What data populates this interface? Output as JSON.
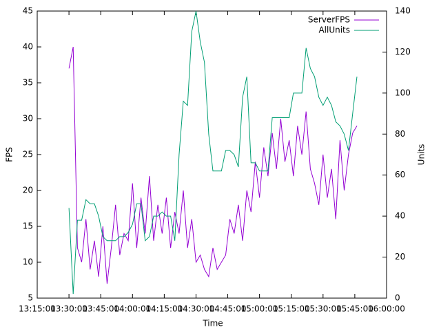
{
  "chart_data": {
    "type": "line",
    "xlabel": "Time",
    "ylabel": "FPS",
    "y2label": "Units",
    "xlim": [
      "13:15:00",
      "16:00:00"
    ],
    "xticks": [
      "13:15:00",
      "13:30:00",
      "13:45:00",
      "14:00:00",
      "14:15:00",
      "14:30:00",
      "14:45:00",
      "15:00:00",
      "15:15:00",
      "15:30:00",
      "15:45:00",
      "16:00:00"
    ],
    "ylim": [
      5,
      45
    ],
    "yticks": [
      5,
      10,
      15,
      20,
      25,
      30,
      35,
      40,
      45
    ],
    "y2lim": [
      0,
      140
    ],
    "y2ticks": [
      0,
      20,
      40,
      60,
      80,
      100,
      120,
      140
    ],
    "legend": "top-right",
    "x": [
      "13:30:00",
      "13:32:00",
      "13:34:00",
      "13:36:00",
      "13:38:00",
      "13:40:00",
      "13:42:00",
      "13:44:00",
      "13:46:00",
      "13:48:00",
      "13:50:00",
      "13:52:00",
      "13:54:00",
      "13:56:00",
      "13:58:00",
      "14:00:00",
      "14:02:00",
      "14:04:00",
      "14:06:00",
      "14:08:00",
      "14:10:00",
      "14:12:00",
      "14:14:00",
      "14:16:00",
      "14:18:00",
      "14:20:00",
      "14:22:00",
      "14:24:00",
      "14:26:00",
      "14:28:00",
      "14:30:00",
      "14:32:00",
      "14:34:00",
      "14:36:00",
      "14:38:00",
      "14:40:00",
      "14:42:00",
      "14:44:00",
      "14:46:00",
      "14:48:00",
      "14:50:00",
      "14:52:00",
      "14:54:00",
      "14:56:00",
      "14:58:00",
      "15:00:00",
      "15:02:00",
      "15:04:00",
      "15:06:00",
      "15:08:00",
      "15:10:00",
      "15:12:00",
      "15:14:00",
      "15:16:00",
      "15:18:00",
      "15:20:00",
      "15:22:00",
      "15:24:00",
      "15:26:00",
      "15:28:00",
      "15:30:00",
      "15:32:00",
      "15:34:00",
      "15:36:00",
      "15:38:00",
      "15:40:00",
      "15:42:00",
      "15:44:00",
      "15:46:00"
    ],
    "series": [
      {
        "name": "ServerFPS",
        "color": "#9400d3",
        "axis": "y",
        "values": [
          37,
          40,
          12,
          10,
          16,
          9,
          13,
          8,
          15,
          7,
          12,
          18,
          11,
          14,
          13,
          21,
          12,
          19,
          14,
          22,
          13,
          18,
          14,
          19,
          12,
          17,
          14,
          20,
          12,
          16,
          10,
          11,
          9,
          8,
          12,
          9,
          10,
          11,
          16,
          14,
          18,
          13,
          20,
          17,
          24,
          19,
          26,
          22,
          28,
          23,
          30,
          24,
          27,
          22,
          29,
          25,
          31,
          23,
          21,
          18,
          25,
          19,
          23,
          16,
          27,
          20,
          25,
          28,
          29
        ]
      },
      {
        "name": "AllUnits",
        "color": "#009e73",
        "axis": "y2",
        "values": [
          44,
          2,
          38,
          38,
          48,
          46,
          46,
          40,
          30,
          28,
          28,
          28,
          30,
          30,
          32,
          36,
          46,
          46,
          28,
          30,
          40,
          40,
          42,
          40,
          40,
          28,
          70,
          96,
          94,
          130,
          140,
          125,
          115,
          80,
          62,
          62,
          62,
          72,
          72,
          70,
          64,
          98,
          108,
          66,
          66,
          62,
          62,
          62,
          88,
          88,
          88,
          88,
          88,
          100,
          100,
          100,
          122,
          112,
          108,
          98,
          94,
          98,
          94,
          86,
          84,
          80,
          72,
          90,
          108
        ]
      }
    ]
  }
}
